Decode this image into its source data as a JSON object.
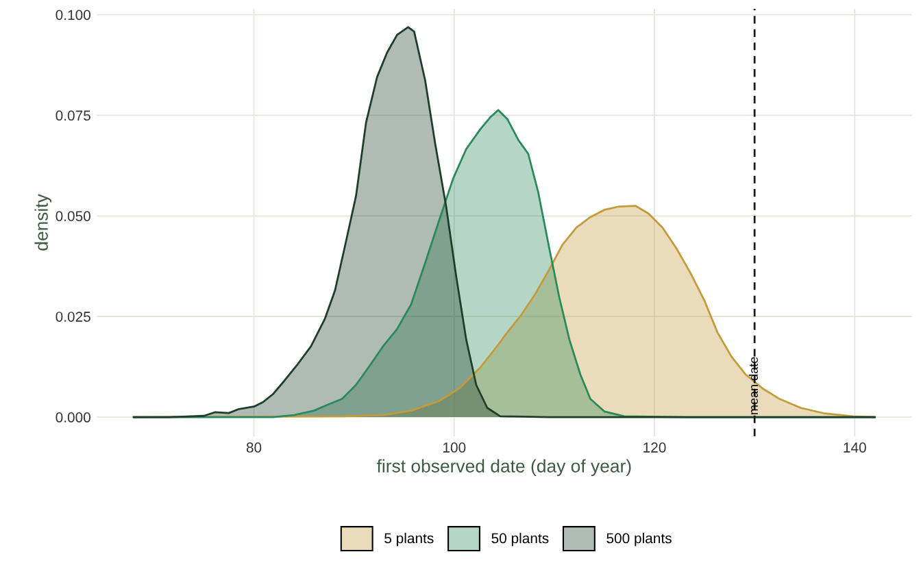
{
  "chart_data": {
    "type": "area",
    "xlabel": "first observed date (day of year)",
    "ylabel": "density",
    "xlim": [
      64.3,
      145.7
    ],
    "ylim": [
      -0.0048,
      0.1015
    ],
    "xticks": [
      80,
      100,
      120,
      140
    ],
    "yticks": [
      {
        "value": 0,
        "label": "0.000"
      },
      {
        "value": 0.025,
        "label": "0.025"
      },
      {
        "value": 0.05,
        "label": "0.050"
      },
      {
        "value": 0.075,
        "label": "0.075"
      },
      {
        "value": 0.1,
        "label": "0.100"
      }
    ],
    "grid": true,
    "legend": "bottom",
    "ref_lines": [
      {
        "axis": "x",
        "value": 130,
        "label": "mean date",
        "color": "#1a1a1a",
        "line_style": "dashed"
      }
    ],
    "series": [
      {
        "name": "5 plants",
        "color": "#c49a3a",
        "x": [
          68,
          88.8,
          92.9,
          95.7,
          98.5,
          100.5,
          102.6,
          104,
          105.3,
          106.7,
          108.1,
          109.5,
          110.8,
          112.2,
          113.6,
          115,
          116.4,
          118.1,
          119.4,
          120.8,
          122.2,
          123.6,
          125,
          126.3,
          127.7,
          129.1,
          130.8,
          132.5,
          134.6,
          137,
          139.8,
          142
        ],
        "values": [
          0,
          0.0002,
          0.0005,
          0.0016,
          0.004,
          0.0071,
          0.0123,
          0.0167,
          0.021,
          0.0254,
          0.0306,
          0.0367,
          0.0428,
          0.0471,
          0.0497,
          0.0515,
          0.0523,
          0.0525,
          0.0506,
          0.0471,
          0.0419,
          0.0358,
          0.0289,
          0.021,
          0.015,
          0.0106,
          0.0071,
          0.0045,
          0.0023,
          0.0009,
          0.0002,
          0
        ]
      },
      {
        "name": "50 plants",
        "color": "#2a8a5c",
        "x": [
          68,
          81.9,
          84,
          86,
          87.4,
          88.8,
          90.2,
          91.6,
          92.9,
          94.3,
          95.7,
          97.1,
          98.5,
          99.9,
          101.2,
          102.6,
          103.6,
          104.4,
          105.3,
          106.4,
          107.4,
          108.4,
          109.5,
          110.5,
          111.5,
          112.6,
          113.6,
          115,
          117,
          123.2,
          142
        ],
        "values": [
          0,
          0,
          0.0005,
          0.0016,
          0.0031,
          0.0045,
          0.008,
          0.0129,
          0.0176,
          0.0219,
          0.028,
          0.0383,
          0.0489,
          0.0593,
          0.0666,
          0.0715,
          0.0745,
          0.0763,
          0.0741,
          0.0689,
          0.0654,
          0.0558,
          0.0419,
          0.0297,
          0.0193,
          0.0106,
          0.0045,
          0.0014,
          0.0002,
          0,
          0
        ]
      },
      {
        "name": "500 plants",
        "color": "#1e3d2a",
        "x": [
          68,
          71.6,
          75,
          76.1,
          77.5,
          78.5,
          80,
          80.9,
          81.9,
          83,
          84.3,
          85.7,
          87.1,
          88.1,
          89.2,
          90.2,
          91.2,
          92.3,
          93.3,
          94.3,
          95.4,
          96,
          97.1,
          98.1,
          99.2,
          100.2,
          101.2,
          102.2,
          103.3,
          104.6,
          109.5,
          142
        ],
        "values": [
          0,
          0,
          0.0003,
          0.0012,
          0.001,
          0.002,
          0.0026,
          0.0037,
          0.0057,
          0.0089,
          0.0129,
          0.0176,
          0.0245,
          0.0315,
          0.0437,
          0.055,
          0.0732,
          0.0845,
          0.0906,
          0.095,
          0.0969,
          0.0958,
          0.0837,
          0.068,
          0.0523,
          0.035,
          0.0193,
          0.008,
          0.0023,
          0.0002,
          0,
          0
        ]
      }
    ]
  }
}
